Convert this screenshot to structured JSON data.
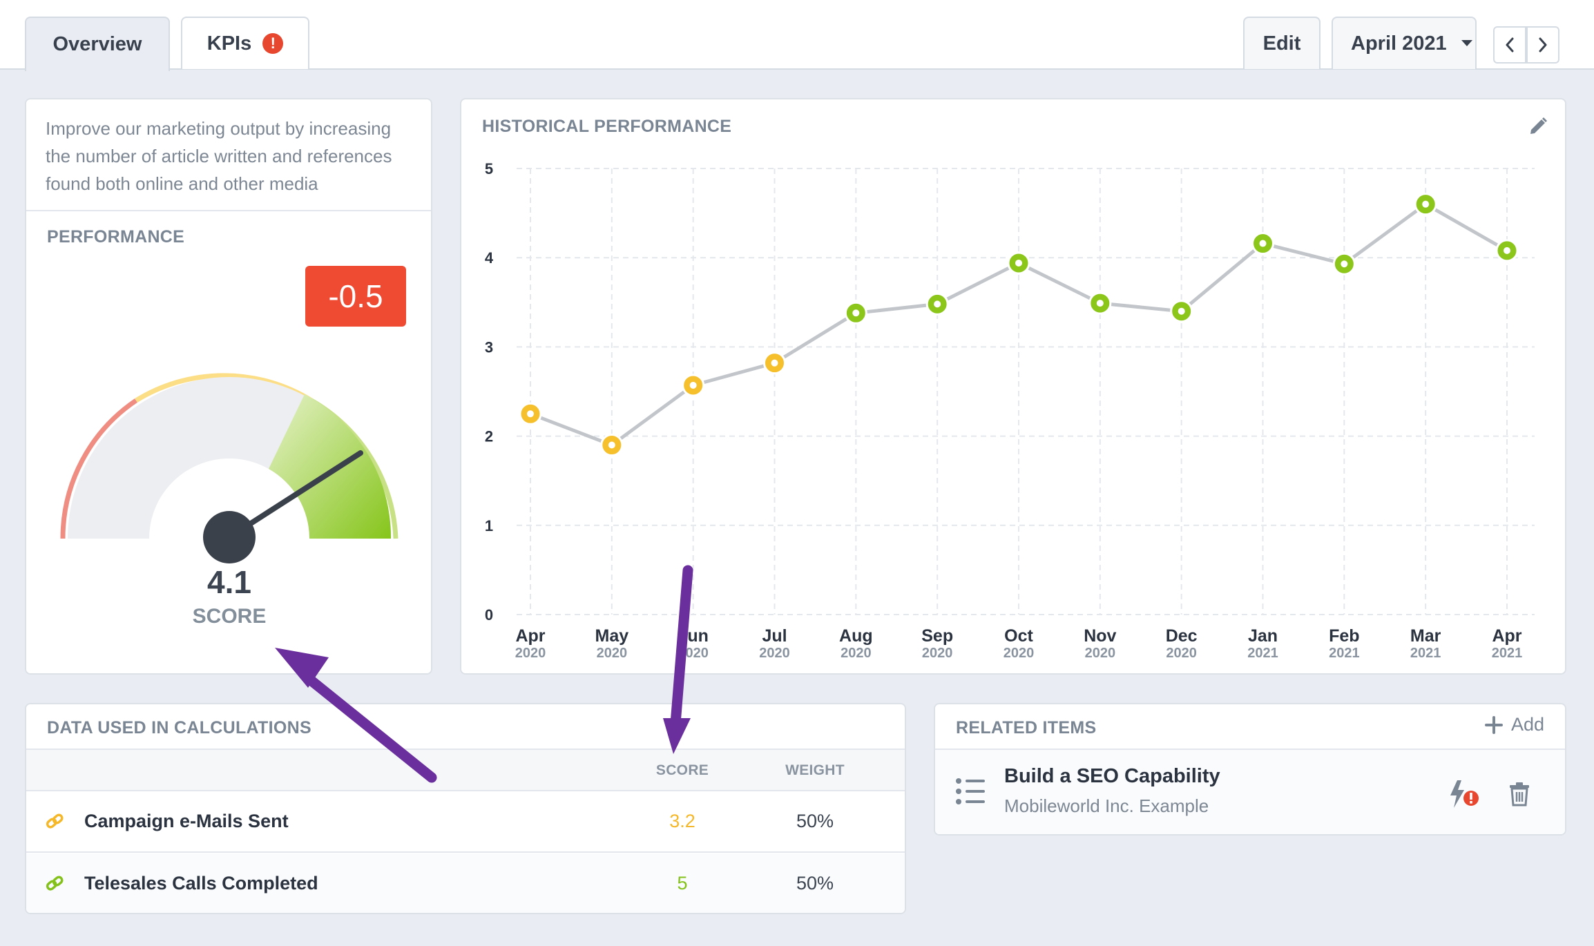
{
  "tabs": [
    {
      "label": "Overview",
      "active": true
    },
    {
      "label": "KPIs",
      "active": false,
      "alert": "!"
    }
  ],
  "toolbar": {
    "edit_label": "Edit",
    "period_label": "April 2021"
  },
  "performance": {
    "description": "Improve our marketing output by increasing the number of article written and references found both online and other media",
    "title": "PERFORMANCE",
    "delta": "-0.5",
    "score": "4.1",
    "score_label": "SCORE",
    "gauge": {
      "value": 4.1,
      "min": 0,
      "max": 5
    }
  },
  "history": {
    "title": "HISTORICAL PERFORMANCE"
  },
  "chart_data": {
    "type": "line",
    "title": "HISTORICAL PERFORMANCE",
    "x_months": [
      "Apr",
      "May",
      "Jun",
      "Jul",
      "Aug",
      "Sep",
      "Oct",
      "Nov",
      "Dec",
      "Jan",
      "Feb",
      "Mar",
      "Apr"
    ],
    "x_years": [
      "2020",
      "2020",
      "2020",
      "2020",
      "2020",
      "2020",
      "2020",
      "2020",
      "2020",
      "2021",
      "2021",
      "2021",
      "2021"
    ],
    "values": [
      2.25,
      1.9,
      2.57,
      2.82,
      3.38,
      3.48,
      3.94,
      3.49,
      3.4,
      4.16,
      3.93,
      4.6,
      4.08
    ],
    "ylim": [
      0,
      5
    ],
    "yticks": [
      "0",
      "1",
      "2",
      "3",
      "4",
      "5"
    ],
    "grid": true,
    "point_colors": {
      "low": "#f5c02c",
      "high": "#8cc61a"
    },
    "threshold": 3,
    "line_color": "#c2c6cb"
  },
  "calc": {
    "title": "DATA USED IN CALCULATIONS",
    "columns": {
      "score": "SCORE",
      "weight": "WEIGHT"
    },
    "rows": [
      {
        "name": "Campaign e-Mails Sent",
        "score": "3.2",
        "weight": "50%",
        "color": "#f5b82a"
      },
      {
        "name": "Telesales Calls Completed",
        "score": "5",
        "weight": "50%",
        "color": "#84c21b"
      }
    ]
  },
  "related": {
    "title": "RELATED ITEMS",
    "add_label": "Add",
    "items": [
      {
        "title": "Build a SEO Capability",
        "subtitle": "Mobileworld Inc. Example"
      }
    ]
  },
  "icons": {
    "pencil": "pencil-icon",
    "chevron_left": "chevron-left-icon",
    "chevron_right": "chevron-right-icon",
    "caret": "caret-down-icon",
    "link": "link-icon",
    "list": "list-icon",
    "trash": "trash-icon",
    "plus": "plus-icon",
    "bolt_alert": "bolt-alert-icon"
  }
}
